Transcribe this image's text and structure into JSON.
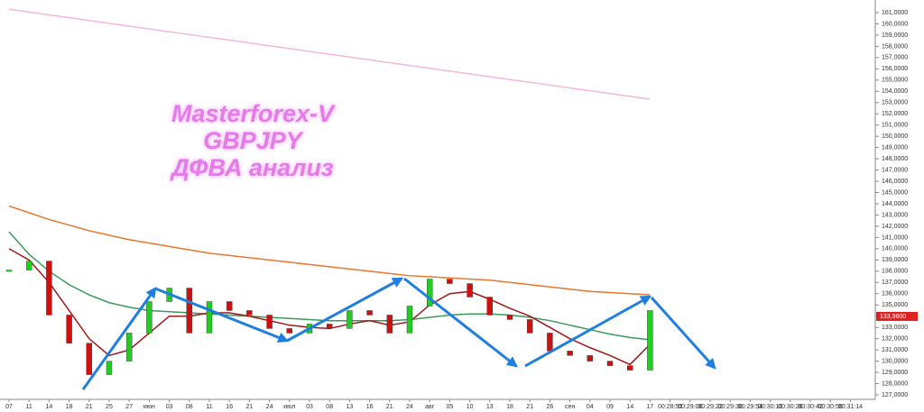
{
  "chart_data": {
    "type": "line",
    "annotations": [
      "Masterforex-V",
      "GBPJPY",
      "ДФВА анализ"
    ],
    "categories": [
      "07",
      "11",
      "14",
      "18",
      "21",
      "25",
      "27",
      "июн",
      "03",
      "08",
      "11",
      "16",
      "21",
      "24",
      "июл",
      "03",
      "08",
      "13",
      "16",
      "21",
      "24",
      "авг",
      "05",
      "10",
      "13",
      "18",
      "21",
      "26",
      "сен",
      "04",
      "09",
      "14",
      "17",
      "00:28:50",
      "00:29:06",
      "00:29:22",
      "00:29:38",
      "00:29:54",
      "00:30:10",
      "00:30:26",
      "00:30:42",
      "00:30:58",
      "00:31:14"
    ],
    "up_color": "#22cc22",
    "down_color": "#cc1111",
    "series": [
      {
        "color": "#f4b8d8",
        "values": [
          161.3,
          161.05,
          160.8,
          160.55,
          160.3,
          160.05,
          159.8,
          159.55,
          159.3,
          159.05,
          158.8,
          158.55,
          158.3,
          158.05,
          157.8,
          157.55,
          157.3,
          157.05,
          156.8,
          156.55,
          156.3,
          156.05,
          155.8,
          155.55,
          155.3,
          155.05,
          154.8,
          154.55,
          154.3,
          154.05,
          153.8,
          153.55,
          153.3,
          null,
          null,
          null,
          null,
          null,
          null,
          null,
          null,
          null,
          null
        ]
      },
      {
        "color": "#e8762b",
        "values": [
          143.8,
          143.2,
          142.6,
          142.1,
          141.6,
          141.2,
          140.8,
          140.5,
          140.2,
          139.9,
          139.6,
          139.4,
          139.2,
          139.0,
          138.8,
          138.6,
          138.4,
          138.2,
          138.0,
          137.8,
          137.6,
          137.5,
          137.4,
          137.3,
          137.2,
          137.0,
          136.8,
          136.6,
          136.4,
          136.2,
          136.1,
          136.0,
          135.9,
          null,
          null,
          null,
          null,
          null,
          null,
          null,
          null,
          null,
          null
        ]
      },
      {
        "color": "#3a9a5a",
        "values": [
          141.5,
          139.5,
          138,
          136.8,
          135.9,
          135.2,
          134.8,
          134.5,
          134.4,
          134.3,
          134.2,
          134.1,
          134.0,
          133.9,
          133.8,
          133.7,
          133.6,
          133.6,
          133.6,
          133.6,
          133.7,
          133.9,
          134.1,
          134.2,
          134.2,
          134.1,
          133.9,
          133.6,
          133.2,
          132.8,
          132.4,
          132.1,
          131.9,
          null,
          null,
          null,
          null,
          null,
          null,
          null,
          null,
          null,
          null
        ]
      },
      {
        "color": "#a01818",
        "values": [
          140,
          139,
          137,
          134.5,
          132,
          130.5,
          131,
          132.5,
          134,
          134,
          134.3,
          134.3,
          134,
          133.6,
          133.2,
          133,
          132.9,
          133.3,
          133.6,
          133.2,
          133.5,
          135,
          136,
          136.2,
          135.5,
          134.7,
          134,
          133,
          132,
          131.2,
          130.5,
          129.7,
          131.5,
          null,
          null,
          null,
          null,
          null,
          null,
          null,
          null,
          null,
          null
        ]
      },
      {
        "color": "#555555",
        "candles": true,
        "values": [
          138.1,
          138.9,
          134.1,
          131.6,
          128.8,
          130.0,
          132.5,
          135.3,
          136.5,
          132.5,
          135.3,
          134.5,
          134.1,
          132.9,
          132.5,
          133.3,
          132.9,
          134.5,
          134.1,
          132.5,
          134.9,
          137.3,
          136.9,
          135.7,
          134.1,
          133.7,
          132.5,
          130.9,
          130.5,
          130.0,
          129.6,
          129.2,
          134.5,
          null,
          null,
          null,
          null,
          null,
          null,
          null,
          null,
          null,
          null
        ]
      }
    ],
    "ylim": [
      127,
      161
    ],
    "yticks": [
      {
        "value": 127,
        "label": "127,0000"
      },
      {
        "value": 128,
        "label": "128,0000"
      },
      {
        "value": 129,
        "label": "129,0000"
      },
      {
        "value": 130,
        "label": "130,0000"
      },
      {
        "value": 131,
        "label": "131,0000"
      },
      {
        "value": 132,
        "label": "132,0000"
      },
      {
        "value": 133,
        "label": "133,0000"
      },
      {
        "value": 134,
        "label": "134,0000"
      },
      {
        "value": 135,
        "label": "135,0000"
      },
      {
        "value": 136,
        "label": "136,0000"
      },
      {
        "value": 137,
        "label": "137,0000"
      },
      {
        "value": 138,
        "label": "138,0000"
      },
      {
        "value": 139,
        "label": "139,0000"
      },
      {
        "value": 140,
        "label": "140,0000"
      },
      {
        "value": 141,
        "label": "141,0000"
      },
      {
        "value": 142,
        "label": "142,0000"
      },
      {
        "value": 143,
        "label": "143,0000"
      },
      {
        "value": 144,
        "label": "144,0000"
      },
      {
        "value": 145,
        "label": "145,0000"
      },
      {
        "value": 146,
        "label": "146,0000"
      },
      {
        "value": 147,
        "label": "147,0000"
      },
      {
        "value": 148,
        "label": "148,0000"
      },
      {
        "value": 149,
        "label": "149,0000"
      },
      {
        "value": 150,
        "label": "150,0000"
      },
      {
        "value": 151,
        "label": "151,0000"
      },
      {
        "value": 152,
        "label": "152,0000"
      },
      {
        "value": 153,
        "label": "153,0000"
      },
      {
        "value": 154,
        "label": "154,0000"
      },
      {
        "value": 155,
        "label": "155,0000"
      },
      {
        "value": 156,
        "label": "156,0000"
      },
      {
        "value": 157,
        "label": "157,0000"
      },
      {
        "value": 158,
        "label": "158,0000"
      },
      {
        "value": 159,
        "label": "159,0000"
      },
      {
        "value": 160,
        "label": "160,0000"
      },
      {
        "value": 161,
        "label": "161,0000"
      }
    ],
    "last_price": {
      "value": 133.98,
      "label": "133,9800",
      "color": "#dd2222"
    }
  }
}
